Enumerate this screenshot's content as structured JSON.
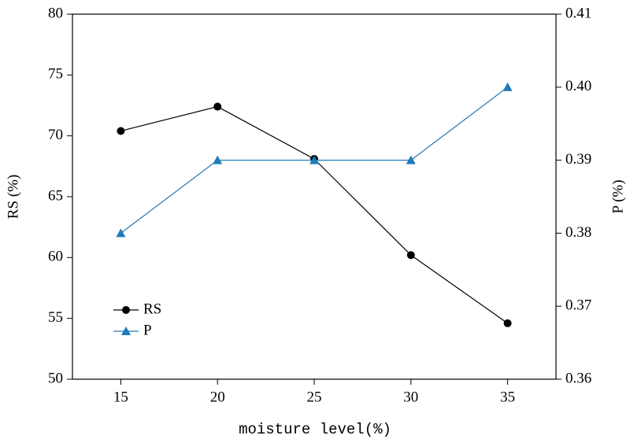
{
  "chart_data": {
    "type": "line",
    "x": [
      15,
      20,
      25,
      30,
      35
    ],
    "xlabel": "moisture level(%)",
    "ylabel": "RS (%)",
    "y2label": "P (%)",
    "xlim": [
      12.5,
      37.5
    ],
    "xticks": [
      15,
      20,
      25,
      30,
      35
    ],
    "ylim": [
      50,
      80
    ],
    "yticks": [
      50,
      55,
      60,
      65,
      70,
      75,
      80
    ],
    "y2lim": [
      0.36,
      0.41
    ],
    "y2ticks": [
      0.36,
      0.37,
      0.38,
      0.39,
      {
        "value": 0.4,
        "label": "0.40"
      },
      0.41
    ],
    "legend": "lower left",
    "series": [
      {
        "name": "RS",
        "color": "#000000",
        "marker": "circle",
        "values": [
          70.4,
          72.4,
          68.1,
          60.2,
          54.6
        ]
      },
      {
        "name": "P",
        "color": "#1f7ab8",
        "marker": "triangle",
        "axis": "y2",
        "values": [
          0.38,
          0.39,
          0.39,
          0.39,
          0.4
        ]
      }
    ]
  }
}
